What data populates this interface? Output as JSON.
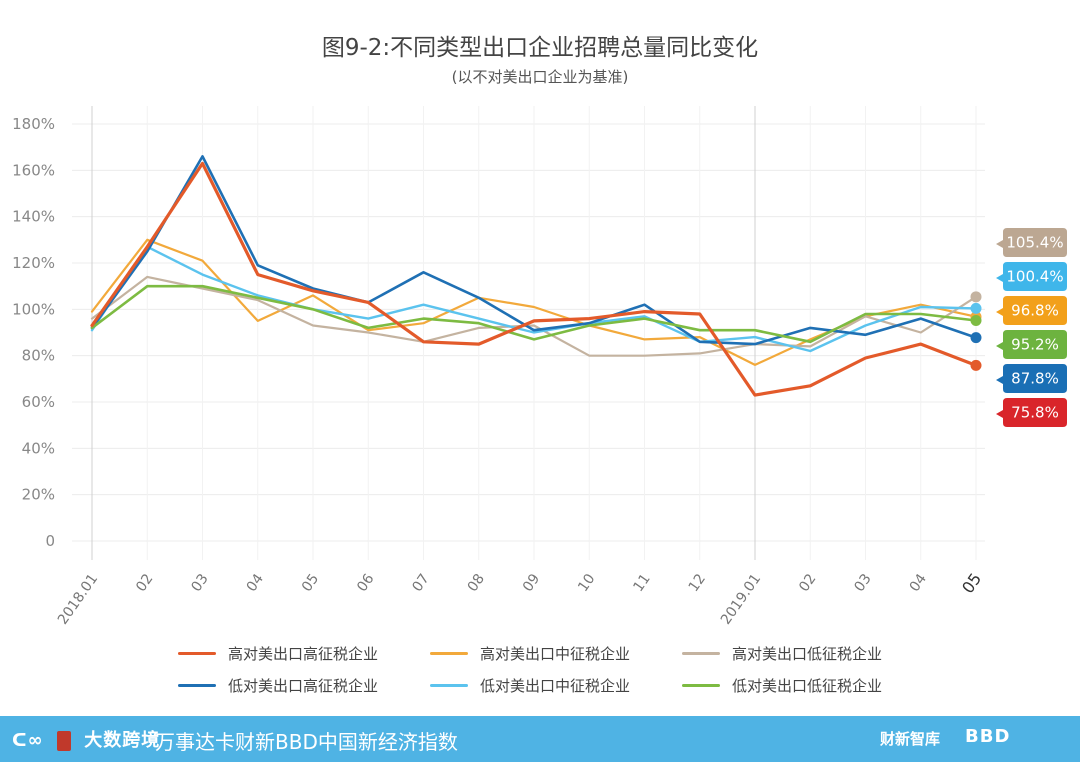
{
  "chart_data": {
    "type": "line",
    "title": "图9-2:不同类型出口企业招聘总量同比变化",
    "subtitle": "(以不对美出口企业为基准)",
    "xlabel": "",
    "ylabel": "",
    "ylim": [
      0,
      180
    ],
    "y_ticks": [
      "0",
      "20%",
      "40%",
      "60%",
      "80%",
      "100%",
      "120%",
      "140%",
      "160%",
      "180%"
    ],
    "categories": [
      "2018.01",
      "02",
      "03",
      "04",
      "05",
      "06",
      "07",
      "08",
      "09",
      "10",
      "11",
      "12",
      "2019.01",
      "02",
      "03",
      "04",
      "05"
    ],
    "series": [
      {
        "name": "高对美出口高征税企业",
        "color": "#e35a2a",
        "width": 3.2,
        "values": [
          93,
          127,
          163,
          115,
          108,
          103,
          86,
          85,
          95,
          96,
          99,
          98,
          63,
          67,
          79,
          85,
          75.8
        ],
        "end_label": "75.8%",
        "label_color": "#d9252a"
      },
      {
        "name": "高对美出口中征税企业",
        "color": "#f2a93b",
        "width": 2.2,
        "values": [
          99,
          130,
          121,
          95,
          106,
          91,
          94,
          105,
          101,
          93,
          87,
          88,
          76,
          87,
          97,
          102,
          96.8
        ],
        "end_label": "96.8%",
        "label_color": "#f2a01b"
      },
      {
        "name": "高对美出口低征税企业",
        "color": "#c4b3a0",
        "width": 2.2,
        "values": [
          96,
          114,
          109,
          104,
          93,
          90,
          86,
          92,
          93,
          80,
          80,
          81,
          85,
          84,
          97,
          90,
          105.4
        ],
        "end_label": "105.4%",
        "label_color": "#bca792"
      },
      {
        "name": "低对美出口高征税企业",
        "color": "#1f70b4",
        "width": 2.6,
        "values": [
          92,
          125,
          166,
          119,
          109,
          103,
          116,
          105,
          91,
          94,
          102,
          86,
          85,
          92,
          89,
          96,
          87.8
        ],
        "end_label": "87.8%",
        "label_color": "#1a6fb5"
      },
      {
        "name": "低对美出口中征税企业",
        "color": "#5bc3ee",
        "width": 2.4,
        "values": [
          91,
          127,
          115,
          106,
          100,
          96,
          102,
          96,
          90,
          94,
          97,
          86,
          88,
          82,
          93,
          101,
          100.4
        ],
        "end_label": "100.4%",
        "label_color": "#3fb6ea"
      },
      {
        "name": "低对美出口低征税企业",
        "color": "#7dbb42",
        "width": 2.6,
        "values": [
          92,
          110,
          110,
          105,
          100,
          92,
          96,
          94,
          87,
          93,
          96,
          91,
          91,
          86,
          98,
          98,
          95.2
        ],
        "end_label": "95.2%",
        "label_color": "#6db33f"
      }
    ],
    "grid": true,
    "legend_position": "bottom"
  },
  "footer": {
    "logo_text": "大数跨境",
    "text": "万事达卡财新BBD中国新经济指数",
    "right_logo": "财新智库",
    "right_logo2": "BBD"
  }
}
